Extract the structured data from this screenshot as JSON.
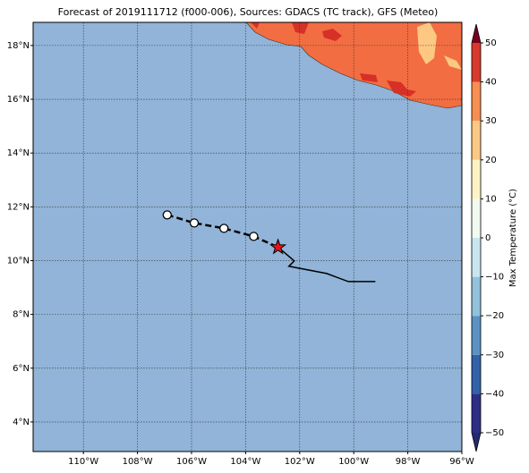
{
  "chart_data": {
    "type": "map",
    "title": "Forecast of 2019111712 (f000-006), Sources: GDACS (TC track), GFS (Meteo)",
    "xlim": [
      -111.86,
      -96
    ],
    "ylim": [
      2.9,
      18.86
    ],
    "xticks": [
      {
        "value": -110,
        "label": "110°W"
      },
      {
        "value": -108,
        "label": "108°W"
      },
      {
        "value": -106,
        "label": "106°W"
      },
      {
        "value": -104,
        "label": "104°W"
      },
      {
        "value": -102,
        "label": "102°W"
      },
      {
        "value": -100,
        "label": "100°W"
      },
      {
        "value": -98,
        "label": "98°W"
      },
      {
        "value": -96,
        "label": "96°W"
      }
    ],
    "yticks": [
      {
        "value": 4,
        "label": "4°N"
      },
      {
        "value": 6,
        "label": "6°N"
      },
      {
        "value": 8,
        "label": "8°N"
      },
      {
        "value": 10,
        "label": "10°N"
      },
      {
        "value": 12,
        "label": "12°N"
      },
      {
        "value": 14,
        "label": "14°N"
      },
      {
        "value": 16,
        "label": "16°N"
      },
      {
        "value": 18,
        "label": "18°N"
      }
    ],
    "grid": true,
    "forecast_track": {
      "lon": [
        -106.9,
        -105.9,
        -104.8,
        -103.7,
        -102.8
      ],
      "lat": [
        11.7,
        11.4,
        11.2,
        10.9,
        10.5
      ]
    },
    "past_track": {
      "lon": [
        -102.8,
        -102.2,
        -102.4,
        -101.0,
        -100.2,
        -99.2
      ],
      "lat": [
        10.5,
        9.99,
        9.79,
        9.52,
        9.22,
        9.22
      ]
    },
    "current_position": {
      "lon": -102.8,
      "lat": 10.5
    },
    "colorbar": {
      "label": "Max Temperature (°C)",
      "levels": [
        -50,
        -40,
        -30,
        -20,
        -10,
        0,
        10,
        20,
        30,
        40,
        50
      ],
      "colors": [
        "#2d2f86",
        "#3262a9",
        "#5b92c4",
        "#92c2dc",
        "#c9e6ef",
        "#f1f9f1",
        "#fef3c4",
        "#fdc884",
        "#f78e52",
        "#d93a2c",
        "#a0002a"
      ],
      "extend_colors": [
        "#232a6e",
        "#7a0020"
      ],
      "ticks": [
        {
          "value": -50,
          "label": "−50"
        },
        {
          "value": -40,
          "label": "−40"
        },
        {
          "value": -30,
          "label": "−30"
        },
        {
          "value": -20,
          "label": "−20"
        },
        {
          "value": -10,
          "label": "−10"
        },
        0,
        10,
        20,
        30,
        40,
        50
      ]
    }
  }
}
